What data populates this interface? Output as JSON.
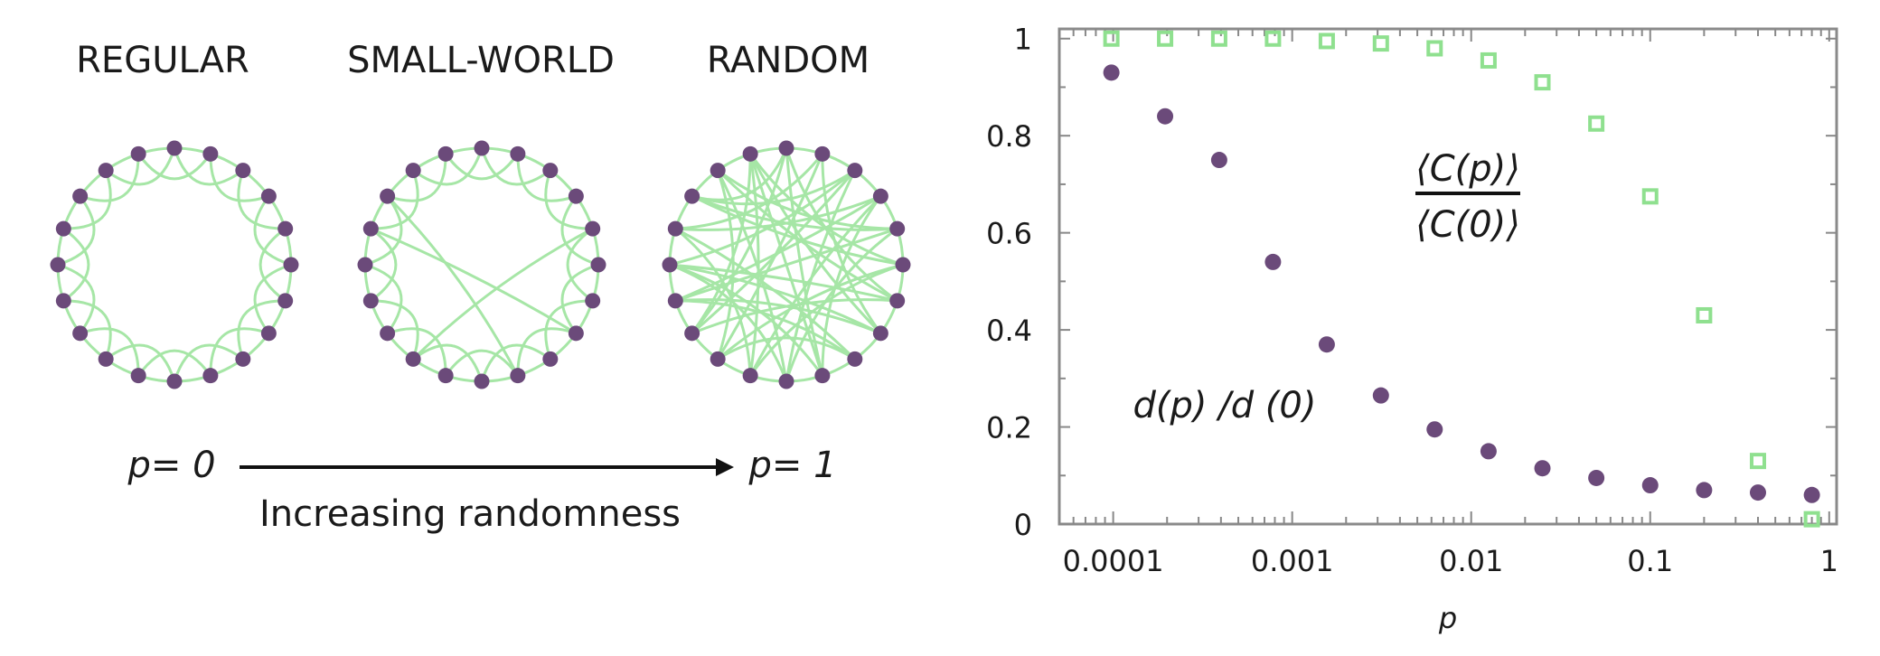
{
  "networks": {
    "labels": [
      "REGULAR",
      "SMALL-WORLD",
      "RANDOM"
    ],
    "p_start": "p= 0",
    "p_end": "p= 1",
    "arrow_caption": "Increasing randomness"
  },
  "colors": {
    "node": "#6b4a7a",
    "edge": "#a6e6a6",
    "clustering_marker": "#8fe08f",
    "axis": "#888888",
    "text": "#1a1a1a"
  },
  "chart_data": {
    "type": "scatter",
    "xscale": "log",
    "xlim": [
      5e-05,
      1.1
    ],
    "ylim": [
      0,
      1.02
    ],
    "xlabel": "p",
    "ylabel": "",
    "xticks": [
      {
        "value": 0.0001,
        "label": "0.0001"
      },
      {
        "value": 0.001,
        "label": "0.001"
      },
      {
        "value": 0.01,
        "label": "0.01"
      },
      {
        "value": 0.1,
        "label": "0.1"
      },
      {
        "value": 1,
        "label": "1"
      }
    ],
    "yticks": [
      {
        "value": 0,
        "label": "0"
      },
      {
        "value": 0.2,
        "label": "0.2"
      },
      {
        "value": 0.4,
        "label": "0.4"
      },
      {
        "value": 0.6,
        "label": "0.6"
      },
      {
        "value": 0.8,
        "label": "0.8"
      },
      {
        "value": 1,
        "label": "1"
      }
    ],
    "series": [
      {
        "label_top": "⟨C(p)⟩",
        "label_bottom": "⟨C(0)⟩",
        "marker": "open-square",
        "color": "#8fe08f",
        "x": [
          9.77e-05,
          0.000195,
          0.000391,
          0.000781,
          0.00156,
          0.00313,
          0.00625,
          0.0125,
          0.025,
          0.05,
          0.1,
          0.2,
          0.4,
          0.8
        ],
        "y": [
          1.0,
          1.0,
          1.0,
          1.0,
          0.995,
          0.99,
          0.98,
          0.955,
          0.91,
          0.825,
          0.675,
          0.43,
          0.13,
          0.01
        ]
      },
      {
        "label": "d(p) /d (0)",
        "marker": "filled-circle",
        "color": "#6b4a7a",
        "x": [
          9.77e-05,
          0.000195,
          0.000391,
          0.000781,
          0.00156,
          0.00313,
          0.00625,
          0.0125,
          0.025,
          0.05,
          0.1,
          0.2,
          0.4,
          0.8
        ],
        "y": [
          0.93,
          0.84,
          0.75,
          0.54,
          0.37,
          0.265,
          0.195,
          0.15,
          0.115,
          0.095,
          0.08,
          0.07,
          0.065,
          0.06
        ]
      }
    ]
  }
}
